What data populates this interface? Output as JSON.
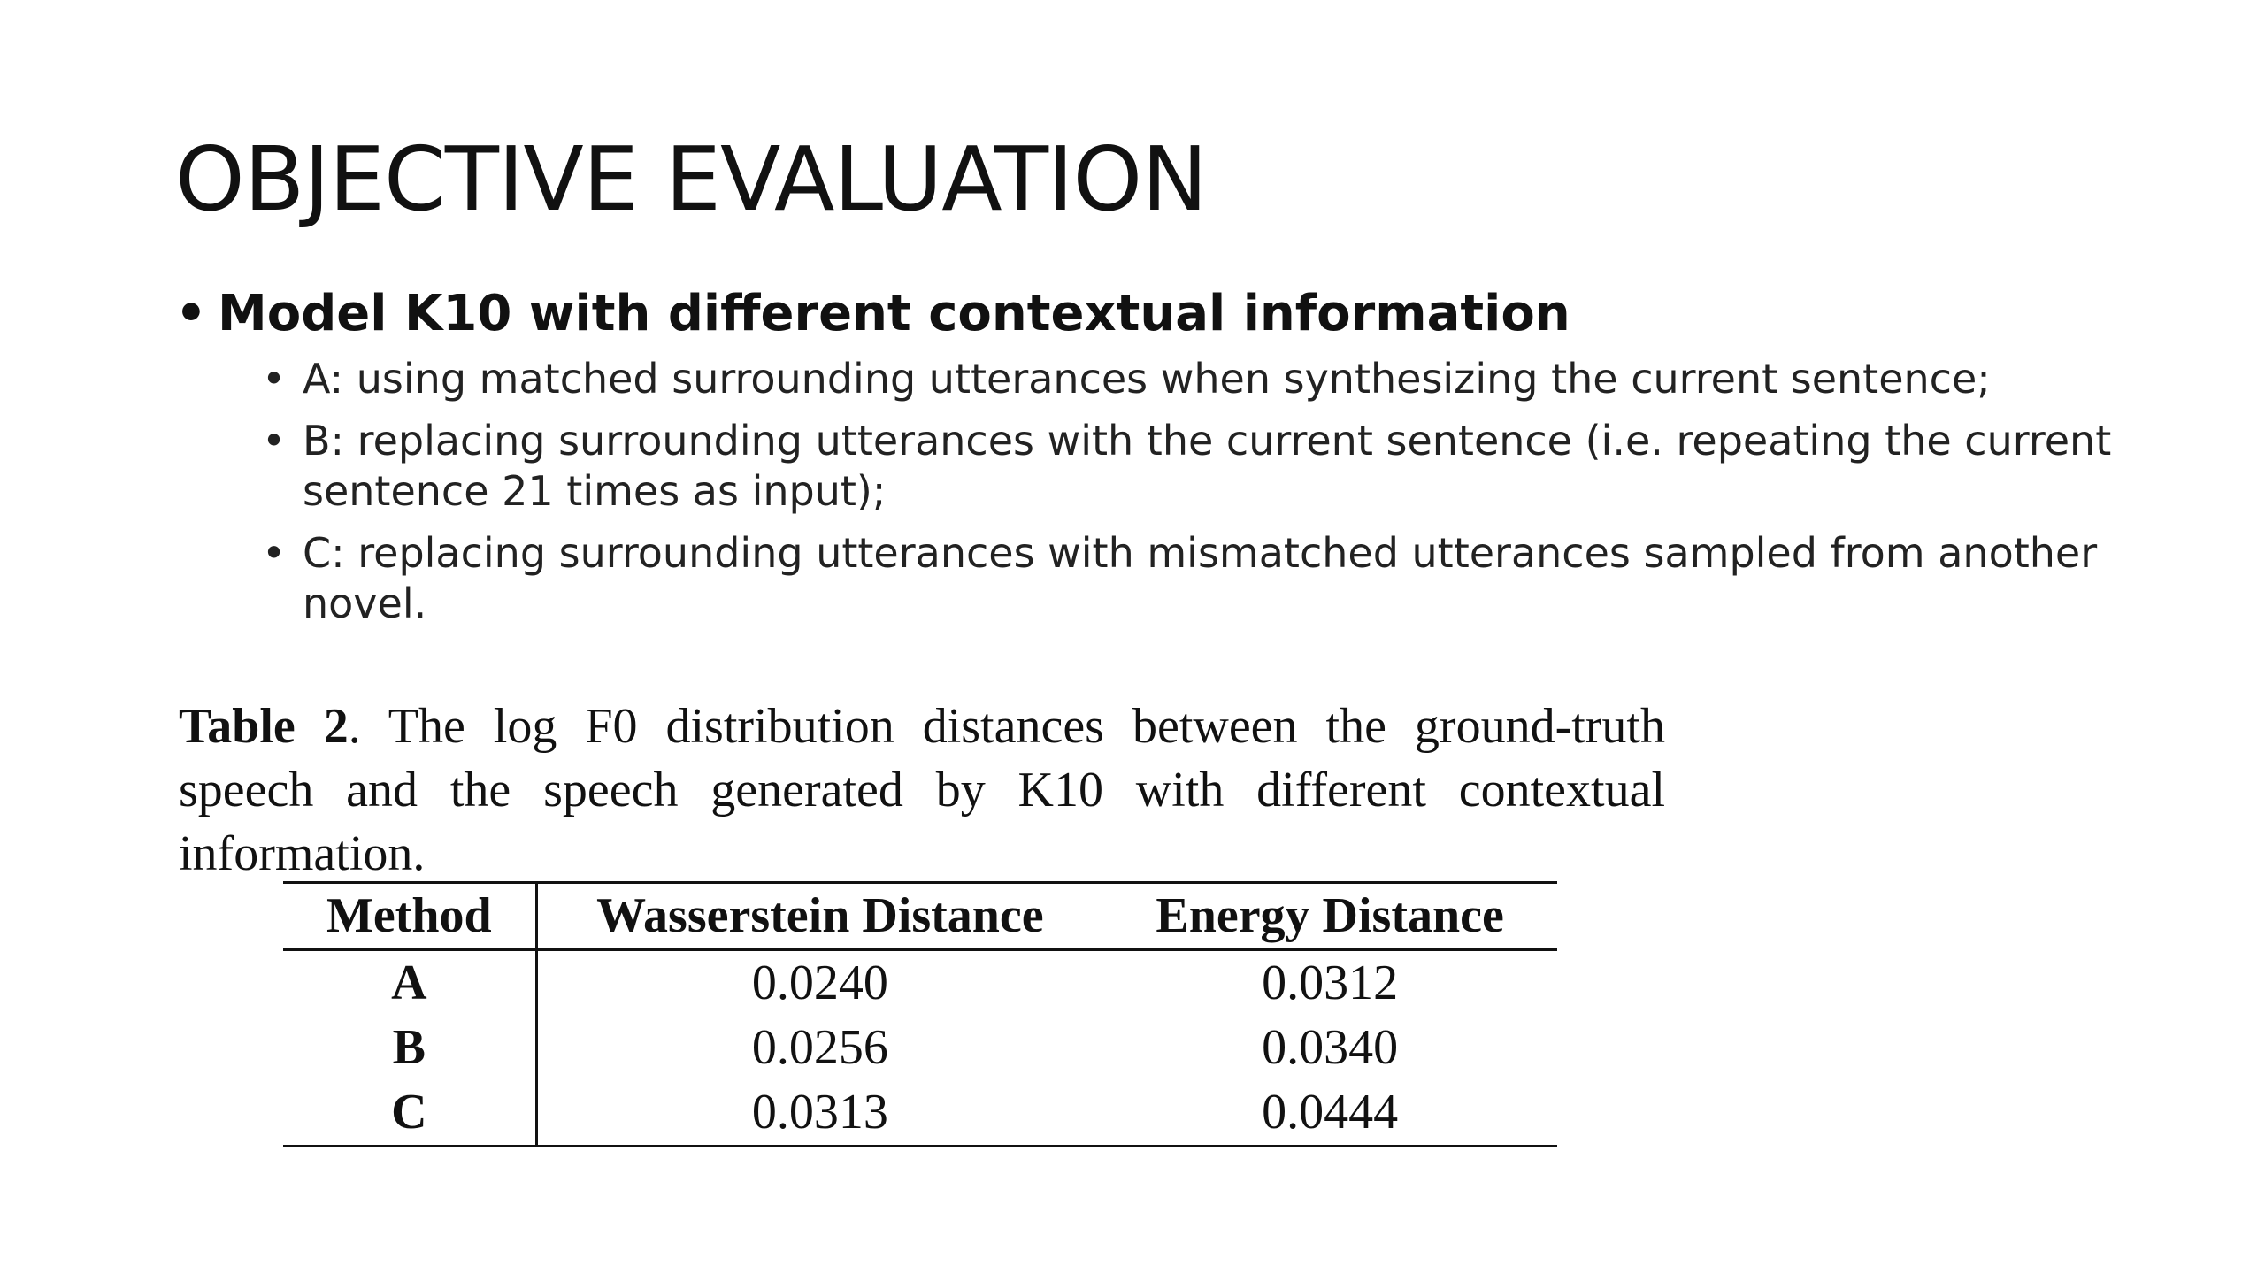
{
  "slide": {
    "title": "OBJECTIVE EVALUATION",
    "main_bullet": "Model K10 with different contextual information",
    "sub_bullets": [
      "A: using matched surrounding utterances when synthesizing the current sentence;",
      "B: replacing surrounding utterances with the current sentence (i.e. repeating the current sentence 21 times as input);",
      "C: replacing surrounding utterances with mismatched utterances sampled from another novel."
    ],
    "bullet_glyph": "•"
  },
  "table": {
    "caption_label": "Table 2",
    "caption_text": ". The log F0 distribution distances between the ground-truth speech and the speech generated by K10 with different contextual information.",
    "headers": [
      "Method",
      "Wasserstein Distance",
      "Energy Distance"
    ],
    "rows": [
      [
        "A",
        "0.0240",
        "0.0312"
      ],
      [
        "B",
        "0.0256",
        "0.0340"
      ],
      [
        "C",
        "0.0313",
        "0.0444"
      ]
    ]
  }
}
